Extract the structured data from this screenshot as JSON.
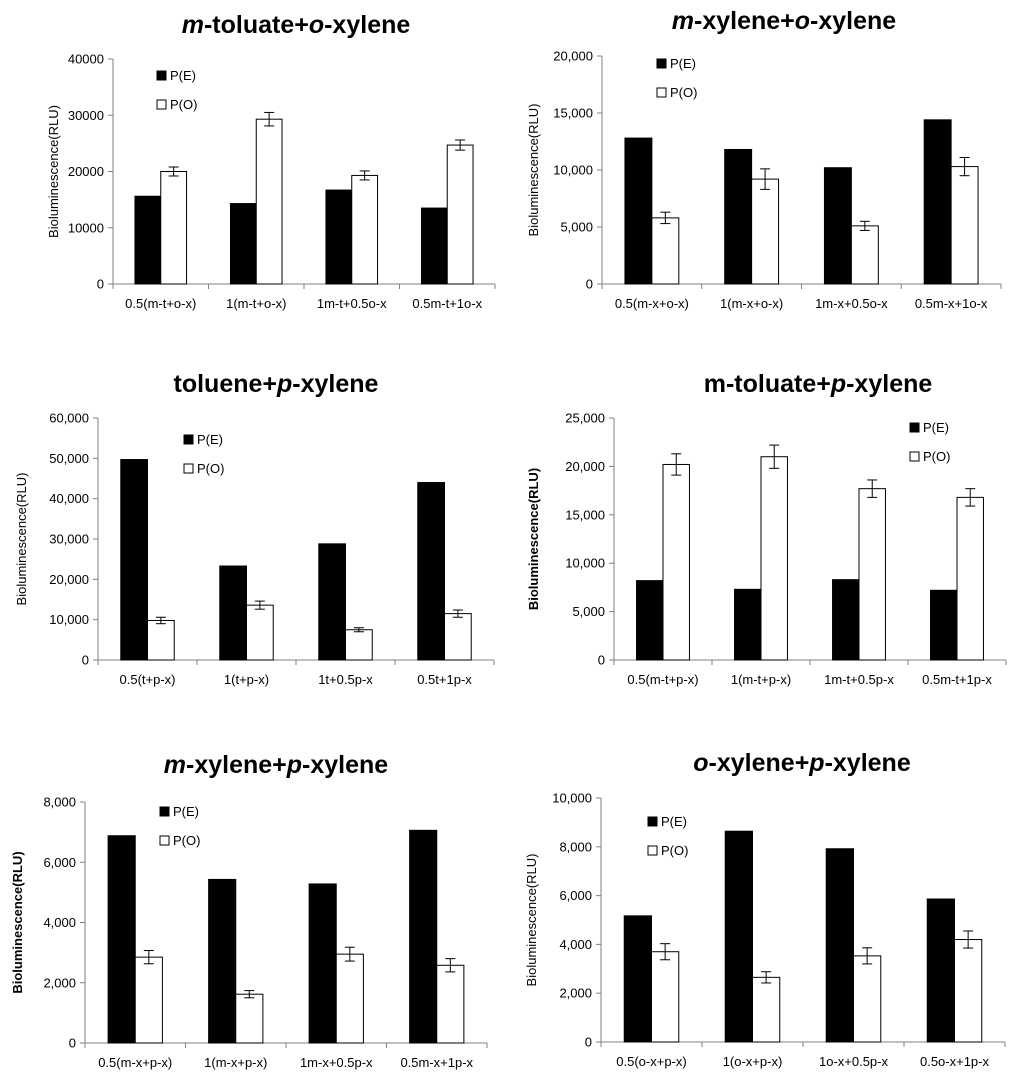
{
  "chart_data": [
    {
      "type": "bar",
      "title": "m-toluate+o-xylene",
      "title_parts": [
        {
          "t": "m",
          "i": true
        },
        {
          "t": "-toluate+",
          "i": false
        },
        {
          "t": "o",
          "i": true
        },
        {
          "t": "-xylene",
          "i": false
        }
      ],
      "ylabel": "Bioluminescence(RLU)",
      "ylabel_bold": false,
      "ylim": [
        0,
        40000
      ],
      "yticks": [
        0,
        10000,
        20000,
        30000,
        40000
      ],
      "ytick_labels": [
        "0",
        "10000",
        "20000",
        "30000",
        "40000"
      ],
      "categories": [
        "0.5(m-t+o-x)",
        "1(m-t+o-x)",
        "1m-t+0.5o-x",
        "0.5m-t+1o-x"
      ],
      "series": [
        {
          "name": "P(E)",
          "fill": "#000000",
          "values": [
            15600,
            14300,
            16700,
            13500
          ],
          "errors": [
            0,
            0,
            0,
            0
          ]
        },
        {
          "name": "P(O)",
          "fill": "#ffffff",
          "values": [
            20000,
            29300,
            19300,
            24700
          ],
          "errors": [
            800,
            1200,
            800,
            900
          ]
        }
      ],
      "legend": "upper-left"
    },
    {
      "type": "bar",
      "title": "m-xylene+o-xylene",
      "title_parts": [
        {
          "t": "m",
          "i": true
        },
        {
          "t": "-xylene+",
          "i": false
        },
        {
          "t": "o",
          "i": true
        },
        {
          "t": "-xylene",
          "i": false
        }
      ],
      "ylabel": "Bioluminescence(RLU)",
      "ylabel_bold": false,
      "ylim": [
        0,
        20000
      ],
      "yticks": [
        0,
        5000,
        10000,
        15000,
        20000
      ],
      "ytick_labels": [
        "0",
        "5,000",
        "10,000",
        "15,000",
        "20,000"
      ],
      "categories": [
        "0.5(m-x+o-x)",
        "1(m-x+o-x)",
        "1m-x+0.5o-x",
        "0.5m-x+1o-x"
      ],
      "series": [
        {
          "name": "P(E)",
          "fill": "#000000",
          "values": [
            12800,
            11800,
            10200,
            14400
          ],
          "errors": [
            0,
            0,
            0,
            0
          ]
        },
        {
          "name": "P(O)",
          "fill": "#ffffff",
          "values": [
            5800,
            9200,
            5100,
            10300
          ],
          "errors": [
            500,
            900,
            400,
            800
          ]
        }
      ],
      "legend": "upper-left"
    },
    {
      "type": "bar",
      "title": "toluene+p-xylene",
      "title_parts": [
        {
          "t": "toluene+",
          "i": false
        },
        {
          "t": "p",
          "i": true
        },
        {
          "t": "-xylene",
          "i": false
        }
      ],
      "ylabel": "Bioluminescence(RLU)",
      "ylabel_bold": false,
      "ylim": [
        0,
        60000
      ],
      "yticks": [
        0,
        10000,
        20000,
        30000,
        40000,
        50000,
        60000
      ],
      "ytick_labels": [
        "0",
        "10,000",
        "20,000",
        "30,000",
        "40,000",
        "50,000",
        "60,000"
      ],
      "categories": [
        "0.5(t+p-x)",
        "1(t+p-x)",
        "1t+0.5p-x",
        "0.5t+1p-x"
      ],
      "series": [
        {
          "name": "P(E)",
          "fill": "#000000",
          "values": [
            49700,
            23300,
            28800,
            44000
          ],
          "errors": [
            0,
            0,
            0,
            0
          ]
        },
        {
          "name": "P(O)",
          "fill": "#ffffff",
          "values": [
            9800,
            13600,
            7500,
            11500
          ],
          "errors": [
            800,
            1000,
            500,
            900
          ]
        }
      ],
      "legend": "upper-center"
    },
    {
      "type": "bar",
      "title": "m-toluate+p-xylene",
      "title_parts": [
        {
          "t": "m-toluate+",
          "i": false
        },
        {
          "t": "p",
          "i": true
        },
        {
          "t": "-xylene",
          "i": false
        }
      ],
      "ylabel": "Bioluminescence(RLU)",
      "ylabel_bold": true,
      "ylim": [
        0,
        25000
      ],
      "yticks": [
        0,
        5000,
        10000,
        15000,
        20000,
        25000
      ],
      "ytick_labels": [
        "0",
        "5,000",
        "10,000",
        "15,000",
        "20,000",
        "25,000"
      ],
      "categories": [
        "0.5(m-t+p-x)",
        "1(m-t+p-x)",
        "1m-t+0.5p-x",
        "0.5m-t+1p-x"
      ],
      "series": [
        {
          "name": "P(E)",
          "fill": "#000000",
          "values": [
            8200,
            7300,
            8300,
            7200
          ],
          "errors": [
            0,
            0,
            0,
            0
          ]
        },
        {
          "name": "P(O)",
          "fill": "#ffffff",
          "values": [
            20200,
            21000,
            17700,
            16800
          ],
          "errors": [
            1100,
            1200,
            900,
            900
          ]
        }
      ],
      "legend": "upper-right"
    },
    {
      "type": "bar",
      "title": "m-xylene+p-xylene",
      "title_parts": [
        {
          "t": "m",
          "i": true
        },
        {
          "t": "-xylene+",
          "i": false
        },
        {
          "t": "p",
          "i": true
        },
        {
          "t": "-xylene",
          "i": false
        }
      ],
      "ylabel": "Bioluminescence(RLU)",
      "ylabel_bold": true,
      "ylim": [
        0,
        8000
      ],
      "yticks": [
        0,
        2000,
        4000,
        6000,
        8000
      ],
      "ytick_labels": [
        "0",
        "2,000",
        "4,000",
        "6,000",
        "8,000"
      ],
      "categories": [
        "0.5(m-x+p-x)",
        "1(m-x+p-x)",
        "1m-x+0.5p-x",
        "0.5m-x+1p-x"
      ],
      "series": [
        {
          "name": "P(E)",
          "fill": "#000000",
          "values": [
            6880,
            5430,
            5280,
            7060
          ],
          "errors": [
            0,
            0,
            0,
            0
          ]
        },
        {
          "name": "P(O)",
          "fill": "#ffffff",
          "values": [
            2850,
            1620,
            2950,
            2580
          ],
          "errors": [
            220,
            120,
            230,
            220
          ]
        }
      ],
      "legend": "upper-left"
    },
    {
      "type": "bar",
      "title": "o-xylene+p-xylene",
      "title_parts": [
        {
          "t": "o",
          "i": true
        },
        {
          "t": "-xylene+",
          "i": false
        },
        {
          "t": "p",
          "i": true
        },
        {
          "t": "-xylene",
          "i": false
        }
      ],
      "ylabel": "Bioluminescence(RLU)",
      "ylabel_bold": false,
      "ylim": [
        0,
        10000
      ],
      "yticks": [
        0,
        2000,
        4000,
        6000,
        8000,
        10000
      ],
      "ytick_labels": [
        "0",
        "2,000",
        "4,000",
        "6,000",
        "8,000",
        "10,000"
      ],
      "categories": [
        "0.5(o-x+p-x)",
        "1(o-x+p-x)",
        "1o-x+0.5p-x",
        "0.5o-x+1p-x"
      ],
      "series": [
        {
          "name": "P(E)",
          "fill": "#000000",
          "values": [
            5170,
            8640,
            7920,
            5860
          ],
          "errors": [
            0,
            0,
            0,
            0
          ]
        },
        {
          "name": "P(O)",
          "fill": "#ffffff",
          "values": [
            3700,
            2650,
            3530,
            4200
          ],
          "errors": [
            330,
            230,
            330,
            350
          ]
        }
      ],
      "legend": "upper-left"
    }
  ]
}
